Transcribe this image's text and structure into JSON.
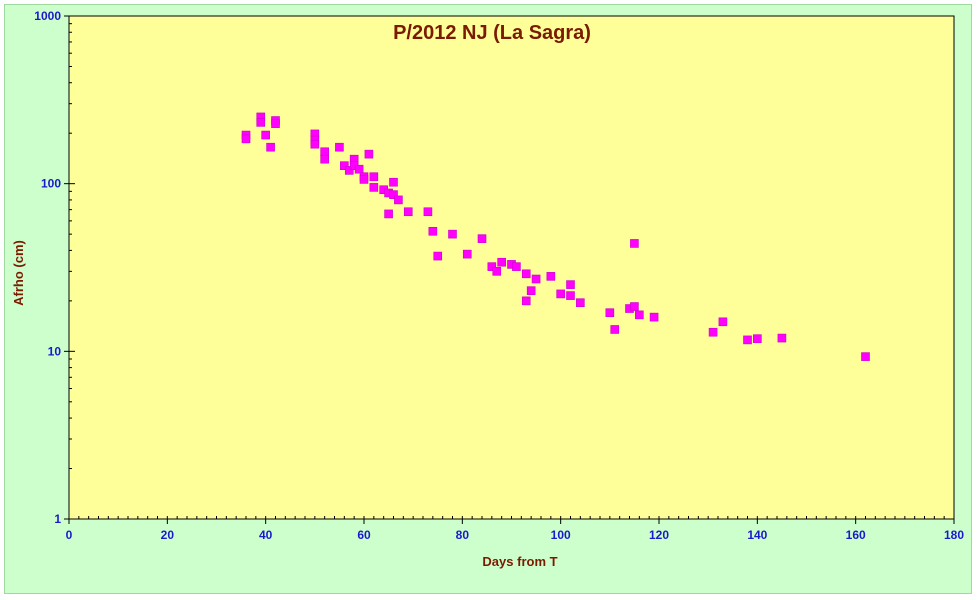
{
  "chart_data": {
    "type": "scatter",
    "title": "P/2012 NJ (La Sagra)",
    "xlabel": "Days from  T",
    "ylabel": "Afrho (cm)",
    "xlim": [
      0,
      180
    ],
    "ylim": [
      1,
      1000
    ],
    "yscale": "log",
    "x_ticks": [
      "0",
      "20",
      "40",
      "60",
      "80",
      "100",
      "120",
      "140",
      "160",
      "180"
    ],
    "y_ticks": [
      "1",
      "10",
      "100",
      "1000"
    ],
    "grid": false,
    "colors": {
      "plot_background": "#ffff99",
      "outer_background": "#ccffcc",
      "marker": "#ff00ff",
      "axis": "#000000",
      "tick_label": "#1a1acc",
      "title": "#7a1a00"
    },
    "series": [
      {
        "marker": "square",
        "points": [
          [
            36,
            195
          ],
          [
            36,
            185
          ],
          [
            39,
            250
          ],
          [
            39,
            232
          ],
          [
            40,
            195
          ],
          [
            41,
            165
          ],
          [
            42,
            238
          ],
          [
            42,
            228
          ],
          [
            50,
            198
          ],
          [
            50,
            182
          ],
          [
            50,
            172
          ],
          [
            52,
            155
          ],
          [
            52,
            140
          ],
          [
            55,
            165
          ],
          [
            56,
            128
          ],
          [
            57,
            120
          ],
          [
            58,
            140
          ],
          [
            58,
            128
          ],
          [
            59,
            122
          ],
          [
            60,
            110
          ],
          [
            60,
            106
          ],
          [
            61,
            150
          ],
          [
            62,
            110
          ],
          [
            62,
            95
          ],
          [
            64,
            92
          ],
          [
            65,
            66
          ],
          [
            65,
            88
          ],
          [
            66,
            102
          ],
          [
            66,
            86
          ],
          [
            67,
            80
          ],
          [
            69,
            68
          ],
          [
            73,
            68
          ],
          [
            74,
            52
          ],
          [
            75,
            37
          ],
          [
            78,
            50
          ],
          [
            81,
            38
          ],
          [
            84,
            47
          ],
          [
            86,
            32
          ],
          [
            87,
            30
          ],
          [
            88,
            34
          ],
          [
            90,
            33
          ],
          [
            91,
            32
          ],
          [
            93,
            29
          ],
          [
            93,
            20
          ],
          [
            94,
            23
          ],
          [
            95,
            27
          ],
          [
            98,
            28
          ],
          [
            100,
            22
          ],
          [
            102,
            25
          ],
          [
            102,
            21.5
          ],
          [
            104,
            19.5
          ],
          [
            110,
            17
          ],
          [
            111,
            13.5
          ],
          [
            114,
            18
          ],
          [
            115,
            18.5
          ],
          [
            115,
            44
          ],
          [
            116,
            16.5
          ],
          [
            119,
            16
          ],
          [
            131,
            13
          ],
          [
            133,
            15
          ],
          [
            138,
            11.7
          ],
          [
            140,
            11.9
          ],
          [
            145,
            12
          ],
          [
            162,
            9.3
          ]
        ]
      }
    ]
  }
}
